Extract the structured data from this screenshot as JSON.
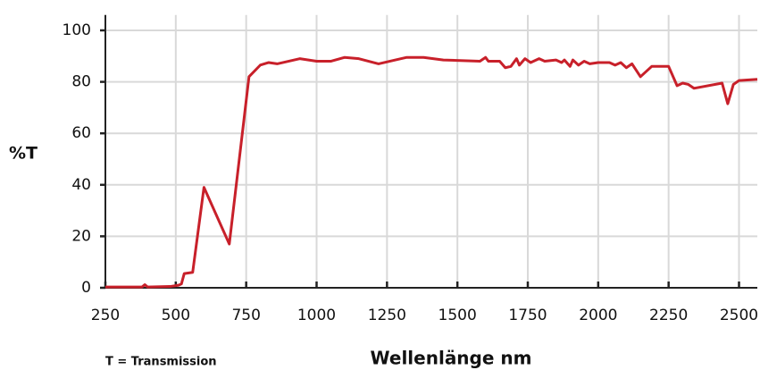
{
  "chart_data": {
    "type": "line",
    "y_label": "%T",
    "x_label": "Wellenlänge nm",
    "note": "T = Transmission",
    "color": "#c8202a",
    "grid": true,
    "xlim": [
      250,
      2565
    ],
    "ylim": [
      0,
      106
    ],
    "xticks": [
      250,
      500,
      750,
      1000,
      1250,
      1500,
      1750,
      2000,
      2250,
      2500
    ],
    "yticks": [
      0,
      20,
      40,
      60,
      80,
      100
    ],
    "x": [
      250,
      380,
      390,
      400,
      480,
      510,
      520,
      530,
      560,
      600,
      690,
      760,
      800,
      830,
      860,
      940,
      1000,
      1050,
      1100,
      1150,
      1220,
      1280,
      1320,
      1380,
      1450,
      1580,
      1600,
      1610,
      1650,
      1670,
      1690,
      1710,
      1720,
      1740,
      1760,
      1790,
      1810,
      1850,
      1870,
      1880,
      1900,
      1910,
      1930,
      1950,
      1970,
      2000,
      2040,
      2060,
      2080,
      2100,
      2120,
      2150,
      2190,
      2250,
      2280,
      2300,
      2320,
      2340,
      2440,
      2460,
      2480,
      2500,
      2565
    ],
    "values": [
      0.3,
      0.3,
      1.2,
      0.3,
      0.5,
      1,
      1.5,
      5.5,
      6,
      39,
      17,
      82,
      86.5,
      87.5,
      87,
      89,
      88,
      88,
      89.5,
      89,
      87,
      88.5,
      89.5,
      89.5,
      88.5,
      88,
      89.5,
      88,
      88,
      85.5,
      86,
      89,
      86.5,
      89,
      87.5,
      89,
      88,
      88.5,
      87.5,
      88.5,
      86,
      88.5,
      86.5,
      88,
      87,
      87.5,
      87.5,
      86.5,
      87.5,
      85.5,
      87,
      82,
      86,
      86,
      78.5,
      79.5,
      79,
      77.5,
      79.5,
      71.5,
      79,
      80.5,
      81
    ]
  }
}
